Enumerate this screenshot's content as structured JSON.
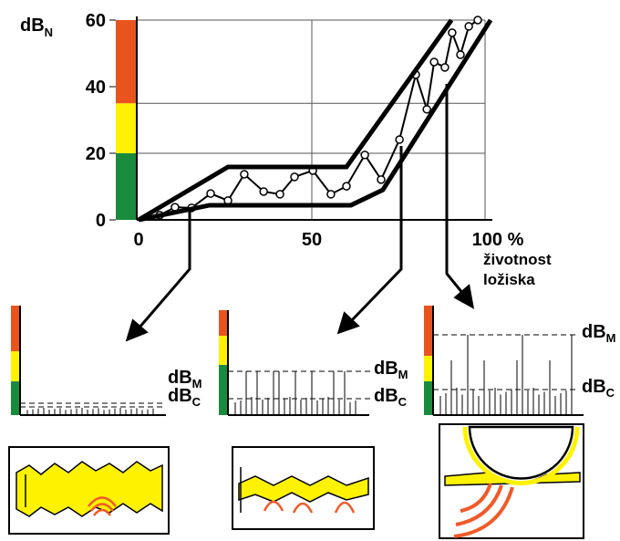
{
  "chart_data": {
    "type": "line",
    "ylabel": "dB",
    "ylabel_sub": "N",
    "xlabel": [
      "životnost",
      "ložiska"
    ],
    "xlim": [
      0,
      100
    ],
    "ylim": [
      0,
      60
    ],
    "xticks": [
      0,
      50,
      {
        "value": 100,
        "label": "100 %"
      }
    ],
    "yticks": [
      0,
      20,
      40,
      60
    ],
    "zones": [
      {
        "from": 0,
        "to": 20,
        "color": "#1a8a3c"
      },
      {
        "from": 20,
        "to": 35,
        "color": "#fff200"
      },
      {
        "from": 35,
        "to": 60,
        "color": "#e8541e"
      }
    ],
    "series": [
      {
        "x": [
          6.1,
          10.5,
          15.3,
          20.8,
          25.8,
          30.5,
          36.1,
          40.8,
          45,
          50.3,
          55.5,
          60,
          65.3,
          70,
          75.3,
          80,
          83.2,
          85.3,
          88.4,
          90.5,
          92.9,
          95.3,
          97.9
        ],
        "values": [
          1.4,
          3.8,
          3.6,
          7.9,
          5.8,
          13.7,
          8.5,
          7.7,
          12.9,
          14.8,
          7.7,
          10.1,
          19.5,
          12.1,
          24.1,
          43.6,
          33.2,
          47.4,
          45.8,
          56.2,
          49.6,
          58.1,
          60
        ],
        "color": "#000000",
        "markers": true
      },
      {
        "x": [
          0,
          25.8,
          60,
          90.3
        ],
        "values": [
          0,
          15.9,
          15.9,
          60
        ],
        "color": "#000000",
        "markers": false
      },
      {
        "x": [
          0,
          20.5,
          61.3,
          70.5,
          101.6
        ],
        "values": [
          0,
          4.4,
          4.4,
          9,
          60
        ],
        "color": "#000000",
        "markers": false
      }
    ]
  },
  "panels": [
    {
      "m": {
        "main": "dB",
        "sub": "M"
      },
      "c": {
        "main": "dB",
        "sub": "C"
      }
    },
    {
      "m": {
        "main": "dB",
        "sub": "M"
      },
      "c": {
        "main": "dB",
        "sub": "C"
      }
    },
    {
      "m": {
        "main": "dB",
        "sub": "M"
      },
      "c": {
        "main": "dB",
        "sub": "C"
      }
    }
  ]
}
